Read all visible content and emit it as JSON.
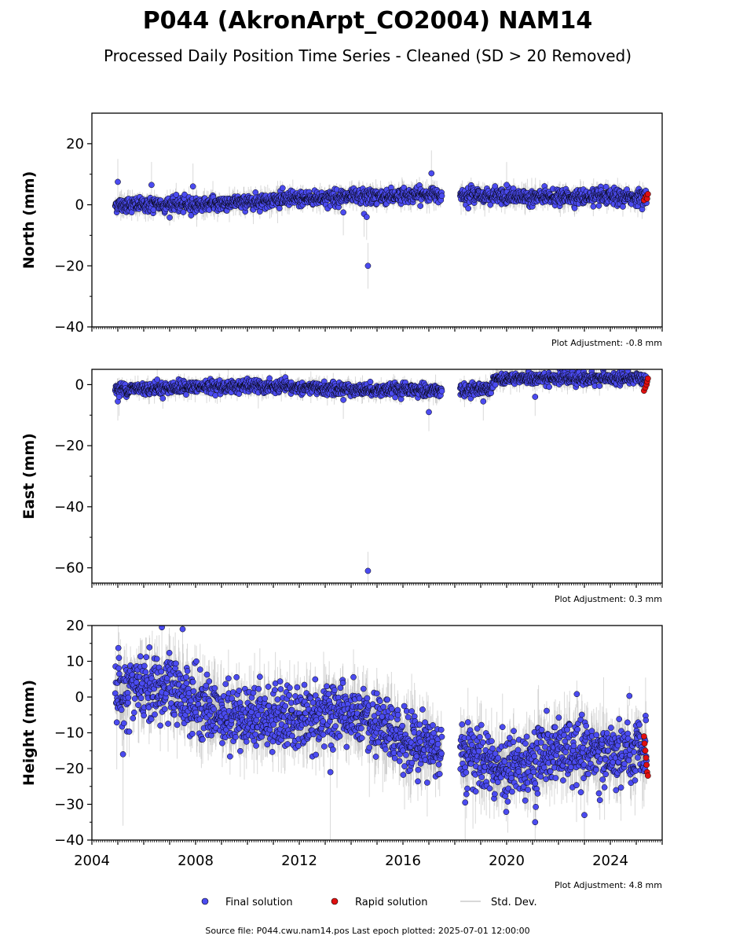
{
  "title": "P044 (AkronArpt_CO2004) NAM14",
  "subtitle": "Processed Daily Position Time Series - Cleaned (SD > 20 Removed)",
  "legend": {
    "final": "Final solution",
    "rapid": "Rapid solution",
    "std": "Std. Dev."
  },
  "source_line": "Source file: P044.cwu.nam14.pos  Last epoch plotted: 2025-07-01 12:00:00",
  "colors": {
    "final": "#4b4bf0",
    "rapid": "#e01010",
    "std": "#aaaaaa",
    "edge": "#000000"
  },
  "chart_data": [
    {
      "type": "scatter",
      "panel": "north",
      "ylabel": "North (mm)",
      "ylim": [
        -40,
        30
      ],
      "yticks": [
        -40,
        -20,
        0,
        20
      ],
      "xlim": [
        2004,
        2026
      ],
      "adjustment_label": "Plot Adjustment: -0.8 mm",
      "x_tick_labels_shown": false,
      "gap": [
        2017.5,
        2018.2
      ],
      "trend": [
        [
          2004.9,
          0
        ],
        [
          2008,
          0
        ],
        [
          2012,
          2
        ],
        [
          2016,
          3
        ],
        [
          2017.5,
          3.5
        ],
        [
          2018.2,
          3.5
        ],
        [
          2020,
          2.5
        ],
        [
          2025.4,
          2.5
        ]
      ],
      "noise_sd": 1.2,
      "std_sd": 3,
      "outliers": [
        {
          "x": 2005.0,
          "y": 7.5
        },
        {
          "x": 2006.3,
          "y": 6.5
        },
        {
          "x": 2007.9,
          "y": 6
        },
        {
          "x": 2013.7,
          "y": -2.5
        },
        {
          "x": 2014.5,
          "y": -3
        },
        {
          "x": 2014.6,
          "y": -4
        },
        {
          "x": 2014.65,
          "y": -20
        },
        {
          "x": 2017.1,
          "y": 10.3
        },
        {
          "x": 2020.0,
          "y": 6.5
        }
      ],
      "rapid": {
        "x": [
          2025.3,
          2025.35,
          2025.4,
          2025.42,
          2025.45
        ],
        "y": [
          1.5,
          2.5,
          3,
          2,
          3.5
        ]
      }
    },
    {
      "type": "scatter",
      "panel": "east",
      "ylabel": "East (mm)",
      "ylim": [
        -65,
        5
      ],
      "yticks": [
        -60,
        -40,
        -20,
        0
      ],
      "xlim": [
        2004,
        2026
      ],
      "adjustment_label": "Plot Adjustment: 0.3 mm",
      "x_tick_labels_shown": false,
      "gap": [
        2017.5,
        2018.2
      ],
      "trend": [
        [
          2004.9,
          -1.5
        ],
        [
          2010,
          -0.5
        ],
        [
          2013.5,
          -1.5
        ],
        [
          2017.5,
          -2
        ],
        [
          2018.2,
          -2
        ],
        [
          2019.4,
          -1
        ],
        [
          2019.5,
          2
        ],
        [
          2025.4,
          2
        ]
      ],
      "noise_sd": 1.0,
      "std_sd": 2.5,
      "outliers": [
        {
          "x": 2005.0,
          "y": -5.5
        },
        {
          "x": 2005.05,
          "y": -4
        },
        {
          "x": 2013.7,
          "y": -5
        },
        {
          "x": 2014.65,
          "y": -61
        },
        {
          "x": 2017.0,
          "y": -9
        },
        {
          "x": 2019.1,
          "y": -5.5
        },
        {
          "x": 2021.1,
          "y": -4
        }
      ],
      "rapid": {
        "x": [
          2025.3,
          2025.35,
          2025.4,
          2025.42,
          2025.45
        ],
        "y": [
          -2,
          -1,
          0,
          1,
          2
        ]
      }
    },
    {
      "type": "scatter",
      "panel": "height",
      "ylabel": "Height (mm)",
      "ylim": [
        -40,
        20
      ],
      "yticks": [
        -40,
        -30,
        -20,
        -10,
        0,
        10,
        20
      ],
      "xlim": [
        2004,
        2026
      ],
      "xticks": [
        2004,
        2008,
        2012,
        2016,
        2020,
        2024
      ],
      "adjustment_label": "Plot Adjustment: 4.8 mm",
      "x_tick_labels_shown": true,
      "gap": [
        2017.5,
        2018.2
      ],
      "trend": [
        [
          2004.9,
          3
        ],
        [
          2007,
          2
        ],
        [
          2009,
          -5
        ],
        [
          2012,
          -6
        ],
        [
          2014,
          -5
        ],
        [
          2016,
          -12
        ],
        [
          2017.5,
          -14
        ],
        [
          2018.2,
          -15
        ],
        [
          2020,
          -20
        ],
        [
          2022,
          -15
        ],
        [
          2025.4,
          -16
        ]
      ],
      "noise_sd": 4.5,
      "std_sd": 8,
      "outliers": [
        {
          "x": 2006.7,
          "y": 19.5
        },
        {
          "x": 2007.5,
          "y": 19
        },
        {
          "x": 2005.2,
          "y": -16
        },
        {
          "x": 2013.2,
          "y": -21
        },
        {
          "x": 2018.4,
          "y": -29.5
        },
        {
          "x": 2023.0,
          "y": -33
        },
        {
          "x": 2021.1,
          "y": -35
        }
      ],
      "rapid": {
        "x": [
          2025.3,
          2025.32,
          2025.35,
          2025.38,
          2025.4,
          2025.42,
          2025.45
        ],
        "y": [
          -11,
          -13,
          -15,
          -17,
          -19,
          -21,
          -22
        ]
      }
    }
  ]
}
